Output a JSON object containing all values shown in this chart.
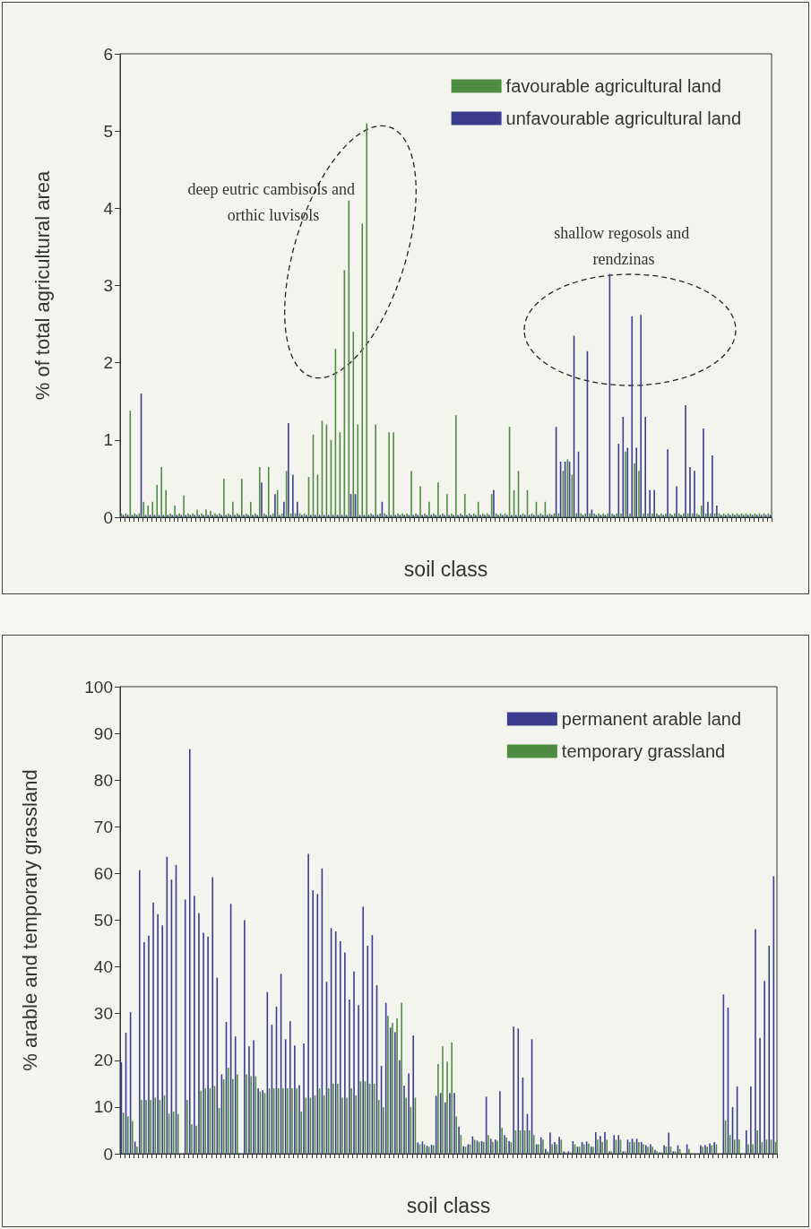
{
  "chart_data": [
    {
      "type": "bar",
      "xlabel": "soil class",
      "ylabel": "% of total agricultural area",
      "ylim": [
        0,
        6
      ],
      "yticks": [
        0,
        1,
        2,
        3,
        4,
        5,
        6
      ],
      "grid": false,
      "legend": "top right",
      "annotations": [
        "deep eutric cambisols and orthic luvisols",
        "shallow regosols and rendzinas"
      ],
      "categories": [
        null,
        null,
        null,
        null,
        null,
        null,
        null,
        null,
        null,
        null,
        null,
        null,
        null,
        null,
        null,
        null,
        null,
        null,
        null,
        null,
        null,
        null,
        null,
        null,
        null,
        null,
        null,
        null,
        null,
        null,
        null,
        null,
        null,
        null,
        null,
        null,
        null,
        null,
        null,
        null,
        null,
        null,
        null,
        null,
        null,
        null,
        null,
        null,
        null,
        null,
        null,
        null,
        null,
        null,
        null,
        null,
        null,
        null,
        null,
        null,
        null,
        null,
        null,
        null,
        null,
        null,
        null,
        null,
        null,
        null,
        null,
        null,
        null,
        null,
        null,
        null,
        null,
        null,
        null,
        null,
        null,
        null,
        null,
        null,
        null,
        null,
        null,
        null,
        null,
        null,
        null,
        null,
        null,
        null,
        null,
        null,
        null,
        null,
        null,
        null,
        null,
        null,
        null,
        null,
        null,
        null,
        null,
        null,
        null,
        null,
        null,
        null,
        null,
        null,
        null,
        null,
        null,
        null,
        null,
        null,
        null,
        null,
        null,
        null,
        null,
        null,
        null,
        null,
        null,
        null,
        null,
        null,
        null,
        null,
        null,
        null,
        null,
        null,
        null,
        null,
        null,
        null,
        null,
        null,
        null,
        null
      ],
      "series": [
        {
          "name": "favourable agricultural land",
          "color": "#4e8c42",
          "values": [
            0.05,
            0.05,
            1.38,
            0.05,
            0.05,
            0.2,
            0.15,
            0.2,
            0.42,
            0.65,
            0.35,
            0.05,
            0.15,
            0.05,
            0.28,
            0.05,
            0.05,
            0.1,
            0.05,
            0.1,
            0.08,
            0.05,
            0.05,
            0.5,
            0.05,
            0.2,
            0.05,
            0.5,
            0.05,
            0.2,
            0.05,
            0.65,
            0.05,
            0.65,
            0.05,
            0.35,
            0.05,
            0.6,
            0.05,
            0.05,
            0.05,
            0.05,
            0.52,
            1.07,
            0.55,
            1.25,
            1.2,
            1,
            2.18,
            1.1,
            3.2,
            4.1,
            2.4,
            1.2,
            3.8,
            5.1,
            0.05,
            1.2,
            0.05,
            0.05,
            1.1,
            1.1,
            0.05,
            0.05,
            0.05,
            0.6,
            0.05,
            0.4,
            0.05,
            0.2,
            0.05,
            0.45,
            0.05,
            0.3,
            0.05,
            1.32,
            0.05,
            0.3,
            0.05,
            0.05,
            0.2,
            0.05,
            0.05,
            0.3,
            0.05,
            0.05,
            0.05,
            1.17,
            0.35,
            0.6,
            0.05,
            0.35,
            0.05,
            0.2,
            0.05,
            0.2,
            0.05,
            0.05,
            0.05,
            0.6,
            0.75,
            0.55,
            0.05,
            0.05,
            0.05,
            0.05,
            0.05,
            0.05,
            0.05,
            0.05,
            0.05,
            0.05,
            0.05,
            0.85,
            0.05,
            0.7,
            0.6,
            0.05,
            0.05,
            0.05,
            0.05,
            0.05,
            0.05,
            0.05,
            0.05,
            0.05,
            0.05,
            0.05,
            0.05,
            0.05,
            0.15,
            0.05,
            0.05,
            0.05,
            0.05,
            0.05,
            0.05,
            0.05,
            0.05,
            0.05,
            0.05,
            0.05,
            0.05,
            0.05,
            0.05,
            0.05
          ]
        },
        {
          "name": "unfavourable agricultural land",
          "color": "#3c3c8e",
          "values": [
            0.03,
            0.03,
            0.03,
            0.03,
            1.6,
            0.03,
            0.03,
            0.03,
            0.03,
            0.03,
            0.03,
            0.03,
            0.03,
            0.03,
            0.03,
            0.03,
            0.03,
            0.03,
            0.03,
            0.03,
            0.03,
            0.03,
            0.03,
            0.03,
            0.03,
            0.03,
            0.03,
            0.03,
            0.03,
            0.03,
            0.03,
            0.45,
            0.03,
            0.03,
            0.3,
            0.03,
            0.2,
            1.22,
            0.55,
            0.2,
            0.03,
            0.03,
            0.03,
            0.03,
            0.03,
            0.03,
            0.03,
            0.03,
            0.03,
            0.03,
            0.03,
            0.3,
            0.3,
            0.03,
            0.03,
            0.03,
            0.03,
            0.03,
            0.2,
            0.03,
            0.03,
            0.03,
            0.03,
            0.03,
            0.03,
            0.03,
            0.03,
            0.03,
            0.03,
            0.03,
            0.03,
            0.03,
            0.03,
            0.03,
            0.03,
            0.03,
            0.03,
            0.03,
            0.03,
            0.03,
            0.03,
            0.03,
            0.03,
            0.35,
            0.03,
            0.03,
            0.03,
            0.03,
            0.03,
            0.03,
            0.03,
            0.03,
            0.03,
            0.03,
            0.03,
            0.03,
            0.03,
            1.17,
            0.72,
            0.72,
            0.72,
            2.35,
            0.85,
            0.03,
            2.15,
            0.1,
            0.03,
            0.03,
            0.03,
            3.15,
            0.03,
            0.95,
            1.3,
            0.9,
            2.6,
            0.9,
            2.62,
            1.3,
            0.35,
            0.35,
            0.03,
            0.03,
            0.88,
            0.03,
            0.4,
            0.03,
            1.45,
            0.65,
            0.6,
            0.03,
            1.15,
            0.2,
            0.8,
            0.15,
            0.03,
            0.03,
            0.03,
            0.03,
            0.03,
            0.03,
            0.03,
            0.03,
            0.03,
            0.03,
            0.03,
            0.03
          ]
        }
      ]
    },
    {
      "type": "bar",
      "xlabel": "soil class",
      "ylabel": "% arable and temporary grassland",
      "ylim": [
        0,
        100
      ],
      "yticks": [
        0,
        10,
        20,
        30,
        40,
        50,
        60,
        70,
        80,
        90,
        100
      ],
      "grid": false,
      "legend": "top right",
      "categories": [
        null,
        null,
        null,
        null,
        null,
        null,
        null,
        null,
        null,
        null,
        null,
        null,
        null,
        null,
        null,
        null,
        null,
        null,
        null,
        null,
        null,
        null,
        null,
        null,
        null,
        null,
        null,
        null,
        null,
        null,
        null,
        null,
        null,
        null,
        null,
        null,
        null,
        null,
        null,
        null,
        null,
        null,
        null,
        null,
        null,
        null,
        null,
        null,
        null,
        null,
        null,
        null,
        null,
        null,
        null,
        null,
        null,
        null,
        null,
        null,
        null,
        null,
        null,
        null,
        null,
        null,
        null,
        null,
        null,
        null,
        null,
        null,
        null,
        null,
        null,
        null,
        null,
        null,
        null,
        null,
        null,
        null,
        null,
        null,
        null,
        null,
        null,
        null,
        null,
        null,
        null,
        null,
        null,
        null,
        null,
        null,
        null,
        null,
        null,
        null,
        null,
        null,
        null,
        null,
        null,
        null,
        null,
        null,
        null,
        null,
        null,
        null,
        null,
        null,
        null,
        null,
        null,
        null,
        null,
        null,
        null,
        null,
        null,
        null,
        null,
        null,
        null,
        null,
        null,
        null,
        null,
        null,
        null,
        null,
        null,
        null,
        null,
        null,
        null,
        null,
        null,
        null,
        null,
        null
      ],
      "series": [
        {
          "name": "permanent arable land",
          "color": "#3c3c8e",
          "values": [
            19.6,
            25.9,
            30.3,
            2.6,
            60.7,
            45.3,
            46.7,
            53.8,
            51.3,
            48.9,
            63.6,
            58.7,
            61.8,
            0,
            54.4,
            86.6,
            55.2,
            51.5,
            47.3,
            46.5,
            59.2,
            37.7,
            17,
            28.2,
            53.5,
            25.1,
            0,
            50,
            23,
            24.3,
            14,
            13.6,
            34.6,
            27.6,
            31.5,
            38.5,
            24.5,
            28.4,
            23.2,
            14.7,
            23.6,
            64.2,
            56.4,
            55.6,
            61.1,
            36.8,
            48.3,
            47.6,
            45.5,
            43.1,
            33,
            39,
            31.8,
            52.9,
            44.5,
            46.8,
            36.1,
            18.8,
            32.3,
            27,
            26,
            20,
            14.6,
            17.2,
            25.3,
            2.4,
            2.6,
            1.7,
            1.9,
            12.4,
            13,
            11,
            13,
            13,
            5.8,
            1.6,
            2,
            3.7,
            2.8,
            2.7,
            12.2,
            3.2,
            3,
            13.4,
            4,
            2.7,
            27.2,
            26.8,
            16.3,
            8.5,
            24.5,
            2,
            3.5,
            1,
            4.5,
            2.5,
            3.6,
            0.5,
            0.5,
            2.7,
            1.5,
            2.5,
            2.6,
            1.5,
            4.6,
            3.8,
            4.6,
            0.5,
            4,
            4,
            0.5,
            3,
            3.2,
            3.2,
            2.5,
            1.8,
            2,
            0.8,
            0.3,
            1.8,
            4.5,
            0.5,
            1.8,
            0,
            2,
            0,
            0,
            1.8,
            1.8,
            2.2,
            2.5,
            0,
            34.1,
            31.3,
            10,
            14.4,
            0,
            5,
            14.4,
            48.1,
            24.8,
            37,
            44.5,
            59.4
          ]
        },
        {
          "name": "temporary grassland",
          "color": "#4e8c42",
          "values": [
            8.8,
            8,
            7,
            1.5,
            11.5,
            11.5,
            11.5,
            12,
            11.5,
            12.5,
            8.6,
            9,
            8.5,
            0,
            11.5,
            6.3,
            6,
            13.5,
            14,
            14,
            14.5,
            9.8,
            15.9,
            18.4,
            16,
            17,
            0,
            17,
            16.6,
            16.6,
            13.3,
            13,
            14,
            14,
            14,
            14,
            14,
            14,
            14,
            9,
            12,
            12,
            12.5,
            14,
            12.5,
            14,
            15,
            15,
            12,
            12,
            14,
            12.5,
            15.5,
            15.5,
            15,
            15,
            11.5,
            10,
            29.5,
            28,
            29,
            32.3,
            12,
            10,
            12,
            2,
            2,
            1.5,
            1.8,
            19.2,
            23,
            19.7,
            23.8,
            8,
            4,
            1.5,
            2,
            3,
            2.5,
            2.5,
            4,
            2.5,
            2.8,
            5.5,
            3.5,
            2.5,
            5,
            5,
            5,
            5,
            4,
            2,
            3,
            0.5,
            2,
            2,
            3,
            0.3,
            0.3,
            2,
            1.5,
            2,
            2.2,
            1.5,
            3,
            2.5,
            3,
            0.5,
            3,
            3,
            0.5,
            2.5,
            2.5,
            2.5,
            2,
            1.5,
            1.5,
            0.5,
            0.3,
            1.5,
            1.5,
            0.5,
            1,
            0,
            1,
            0,
            0,
            1.5,
            1.5,
            1.8,
            2,
            0,
            7.1,
            4,
            3,
            3,
            0,
            2,
            2,
            5,
            2.5,
            3,
            3,
            2.5
          ]
        }
      ]
    }
  ]
}
